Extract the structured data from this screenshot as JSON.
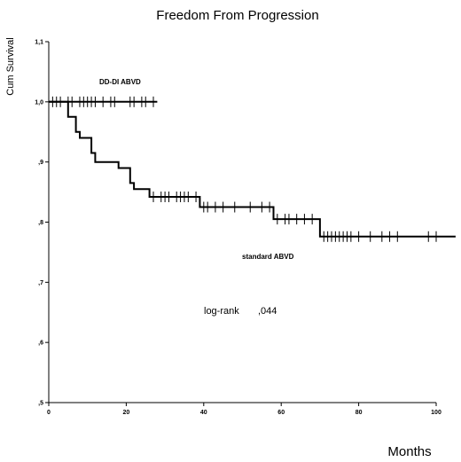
{
  "chart_data": {
    "type": "line",
    "title": "Freedom From Progression",
    "xlabel": "Months",
    "ylabel": "Cum Survival",
    "xlim": [
      0,
      100
    ],
    "ylim": [
      0.5,
      1.1
    ],
    "x_ticks": [
      "0",
      "20",
      "40",
      "60",
      "80",
      "100"
    ],
    "y_ticks": [
      {
        "value": 1.1,
        "label": "1,1"
      },
      {
        "value": 1.0,
        "label": "1,0"
      },
      {
        "value": 0.9,
        "label": ",9"
      },
      {
        "value": 0.8,
        "label": ",8"
      },
      {
        "value": 0.7,
        "label": ",7"
      },
      {
        "value": 0.6,
        "label": ",6"
      },
      {
        "value": 0.5,
        "label": ",5"
      }
    ],
    "grid": false,
    "series": [
      {
        "name": "DD-DI ABVD",
        "color": "#000000",
        "steps": [
          [
            0,
            1.0
          ],
          [
            28,
            1.0
          ]
        ],
        "censored": [
          [
            1,
            1.0
          ],
          [
            2,
            1.0
          ],
          [
            3,
            1.0
          ],
          [
            5,
            1.0
          ],
          [
            6,
            1.0
          ],
          [
            8,
            1.0
          ],
          [
            9,
            1.0
          ],
          [
            10,
            1.0
          ],
          [
            11,
            1.0
          ],
          [
            12,
            1.0
          ],
          [
            14,
            1.0
          ],
          [
            16,
            1.0
          ],
          [
            17,
            1.0
          ],
          [
            21,
            1.0
          ],
          [
            22,
            1.0
          ],
          [
            24,
            1.0
          ],
          [
            25,
            1.0
          ],
          [
            27,
            1.0
          ]
        ]
      },
      {
        "name": "standard ABVD",
        "color": "#000000",
        "steps": [
          [
            0,
            1.0
          ],
          [
            5,
            1.0
          ],
          [
            5,
            0.975
          ],
          [
            7,
            0.975
          ],
          [
            7,
            0.95
          ],
          [
            8,
            0.95
          ],
          [
            8,
            0.94
          ],
          [
            11,
            0.94
          ],
          [
            11,
            0.915
          ],
          [
            12,
            0.915
          ],
          [
            12,
            0.9
          ],
          [
            18,
            0.9
          ],
          [
            18,
            0.89
          ],
          [
            21,
            0.89
          ],
          [
            21,
            0.865
          ],
          [
            22,
            0.865
          ],
          [
            22,
            0.855
          ],
          [
            26,
            0.855
          ],
          [
            26,
            0.842
          ],
          [
            39,
            0.842
          ],
          [
            39,
            0.825
          ],
          [
            58,
            0.825
          ],
          [
            58,
            0.805
          ],
          [
            70,
            0.805
          ],
          [
            70,
            0.776
          ],
          [
            105,
            0.776
          ]
        ],
        "censored": [
          [
            27,
            0.842
          ],
          [
            29,
            0.842
          ],
          [
            30,
            0.842
          ],
          [
            31,
            0.842
          ],
          [
            33,
            0.842
          ],
          [
            34,
            0.842
          ],
          [
            35,
            0.842
          ],
          [
            36,
            0.842
          ],
          [
            38,
            0.842
          ],
          [
            40,
            0.825
          ],
          [
            41,
            0.825
          ],
          [
            43,
            0.825
          ],
          [
            45,
            0.825
          ],
          [
            48,
            0.825
          ],
          [
            52,
            0.825
          ],
          [
            55,
            0.825
          ],
          [
            57,
            0.825
          ],
          [
            59,
            0.805
          ],
          [
            61,
            0.805
          ],
          [
            62,
            0.805
          ],
          [
            64,
            0.805
          ],
          [
            66,
            0.805
          ],
          [
            68,
            0.805
          ],
          [
            71,
            0.776
          ],
          [
            72,
            0.776
          ],
          [
            73,
            0.776
          ],
          [
            74,
            0.776
          ],
          [
            75,
            0.776
          ],
          [
            76,
            0.776
          ],
          [
            77,
            0.776
          ],
          [
            78,
            0.776
          ],
          [
            80,
            0.776
          ],
          [
            83,
            0.776
          ],
          [
            86,
            0.776
          ],
          [
            88,
            0.776
          ],
          [
            90,
            0.776
          ],
          [
            98,
            0.776
          ],
          [
            100,
            0.776
          ]
        ]
      }
    ],
    "annotations": {
      "dd_label": "DD-DI ABVD",
      "std_label": "standard ABVD",
      "logrank_label": "log-rank",
      "logrank_value": ",044"
    }
  }
}
